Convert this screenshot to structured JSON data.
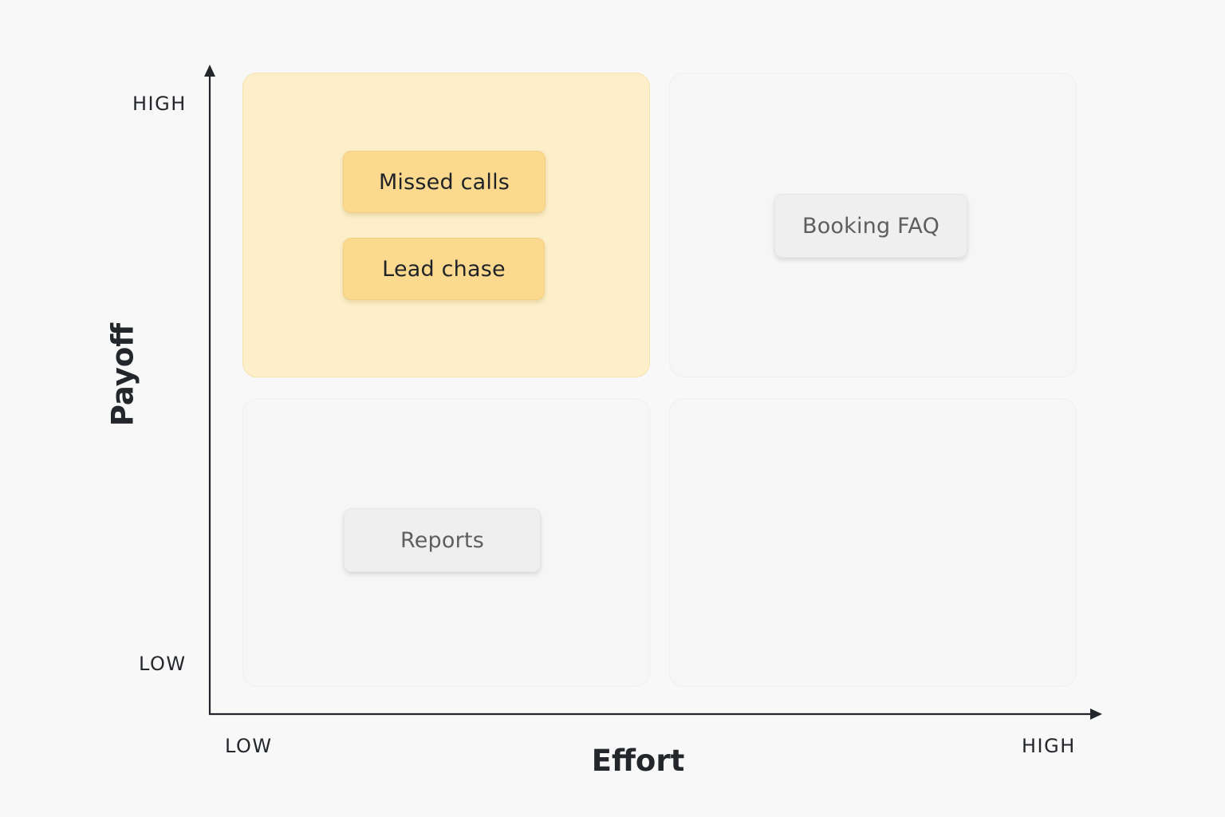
{
  "axes": {
    "y": {
      "title": "Payoff",
      "high_label": "HIGH",
      "low_label": "LOW"
    },
    "x": {
      "title": "Effort",
      "low_label": "LOW",
      "high_label": "HIGH"
    }
  },
  "quadrants": {
    "low_effort_high_payoff": {
      "highlighted": true,
      "items": [
        "Missed calls",
        "Lead chase"
      ]
    },
    "high_effort_high_payoff": {
      "highlighted": false,
      "items": [
        "Booking FAQ"
      ]
    },
    "low_effort_low_payoff": {
      "highlighted": false,
      "items": [
        "Reports"
      ]
    },
    "high_effort_low_payoff": {
      "highlighted": false,
      "items": []
    }
  },
  "colors": {
    "highlight_quadrant": "#fdefc9",
    "highlight_chip": "#fbd98f",
    "neutral_chip": "#efefef",
    "axis": "#23272b"
  }
}
